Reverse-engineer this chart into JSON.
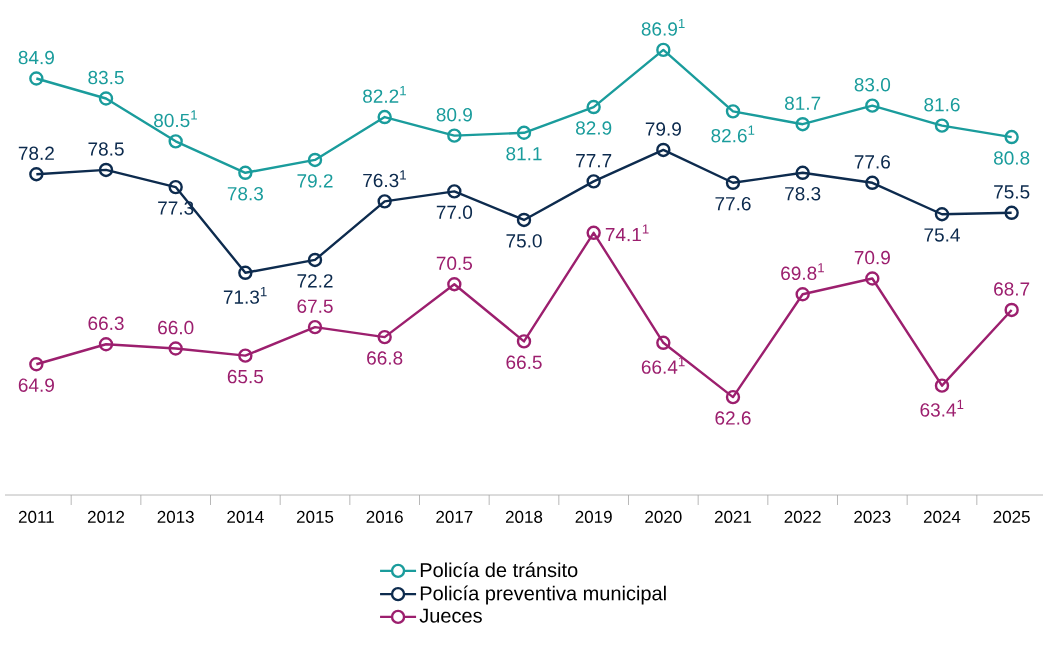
{
  "chart_data": {
    "type": "line",
    "categories": [
      "2011",
      "2012",
      "2013",
      "2014",
      "2015",
      "2016",
      "2017",
      "2018",
      "2019",
      "2020",
      "2021",
      "2022",
      "2023",
      "2024",
      "2025"
    ],
    "series": [
      {
        "name": "Policía de tránsito",
        "color": "#1a9c9c",
        "values": [
          84.9,
          83.5,
          80.5,
          78.3,
          79.2,
          82.2,
          80.9,
          81.1,
          82.9,
          86.9,
          82.6,
          81.7,
          83.0,
          81.6,
          80.8
        ],
        "value_labels": [
          "84.9",
          "83.5",
          "80.5$^{1}$",
          "78.3",
          "79.2",
          "82.2$^{1}$",
          "80.9",
          "81.1",
          "82.9",
          "86.9$^{1}$",
          "82.6$^{1}$",
          "81.7",
          "83.0",
          "81.6",
          "80.8"
        ]
      },
      {
        "name": "Policía preventiva municipal",
        "color": "#0d2b4e",
        "values": [
          78.2,
          78.5,
          77.3,
          71.3,
          72.2,
          76.3,
          77.0,
          75.0,
          77.7,
          79.9,
          77.6,
          78.3,
          77.6,
          75.4,
          75.5
        ],
        "value_labels": [
          "78.2",
          "78.5",
          "77.3",
          "71.3$^{1}$",
          "72.2",
          "76.3$^{1}$",
          "77.0",
          "75.0",
          "77.7",
          "79.9",
          "77.6",
          "78.3",
          "77.6",
          "75.4",
          "75.5"
        ]
      },
      {
        "name": "Jueces",
        "color": "#9c1f6e",
        "values": [
          64.9,
          66.3,
          66.0,
          65.5,
          67.5,
          66.8,
          70.5,
          66.5,
          74.1,
          66.4,
          62.6,
          69.8,
          70.9,
          63.4,
          68.7
        ],
        "value_labels": [
          "64.9",
          "66.3",
          "66.0",
          "65.5",
          "67.5",
          "66.8",
          "70.5",
          "66.5",
          "74.1$^{1}$",
          "66.4$^{1}$",
          "62.6",
          "69.8$^{1}$",
          "70.9",
          "63.4$^{1}$",
          "68.7"
        ]
      }
    ],
    "tick_labels": "x",
    "legend": "bottom",
    "marker": "circle"
  }
}
